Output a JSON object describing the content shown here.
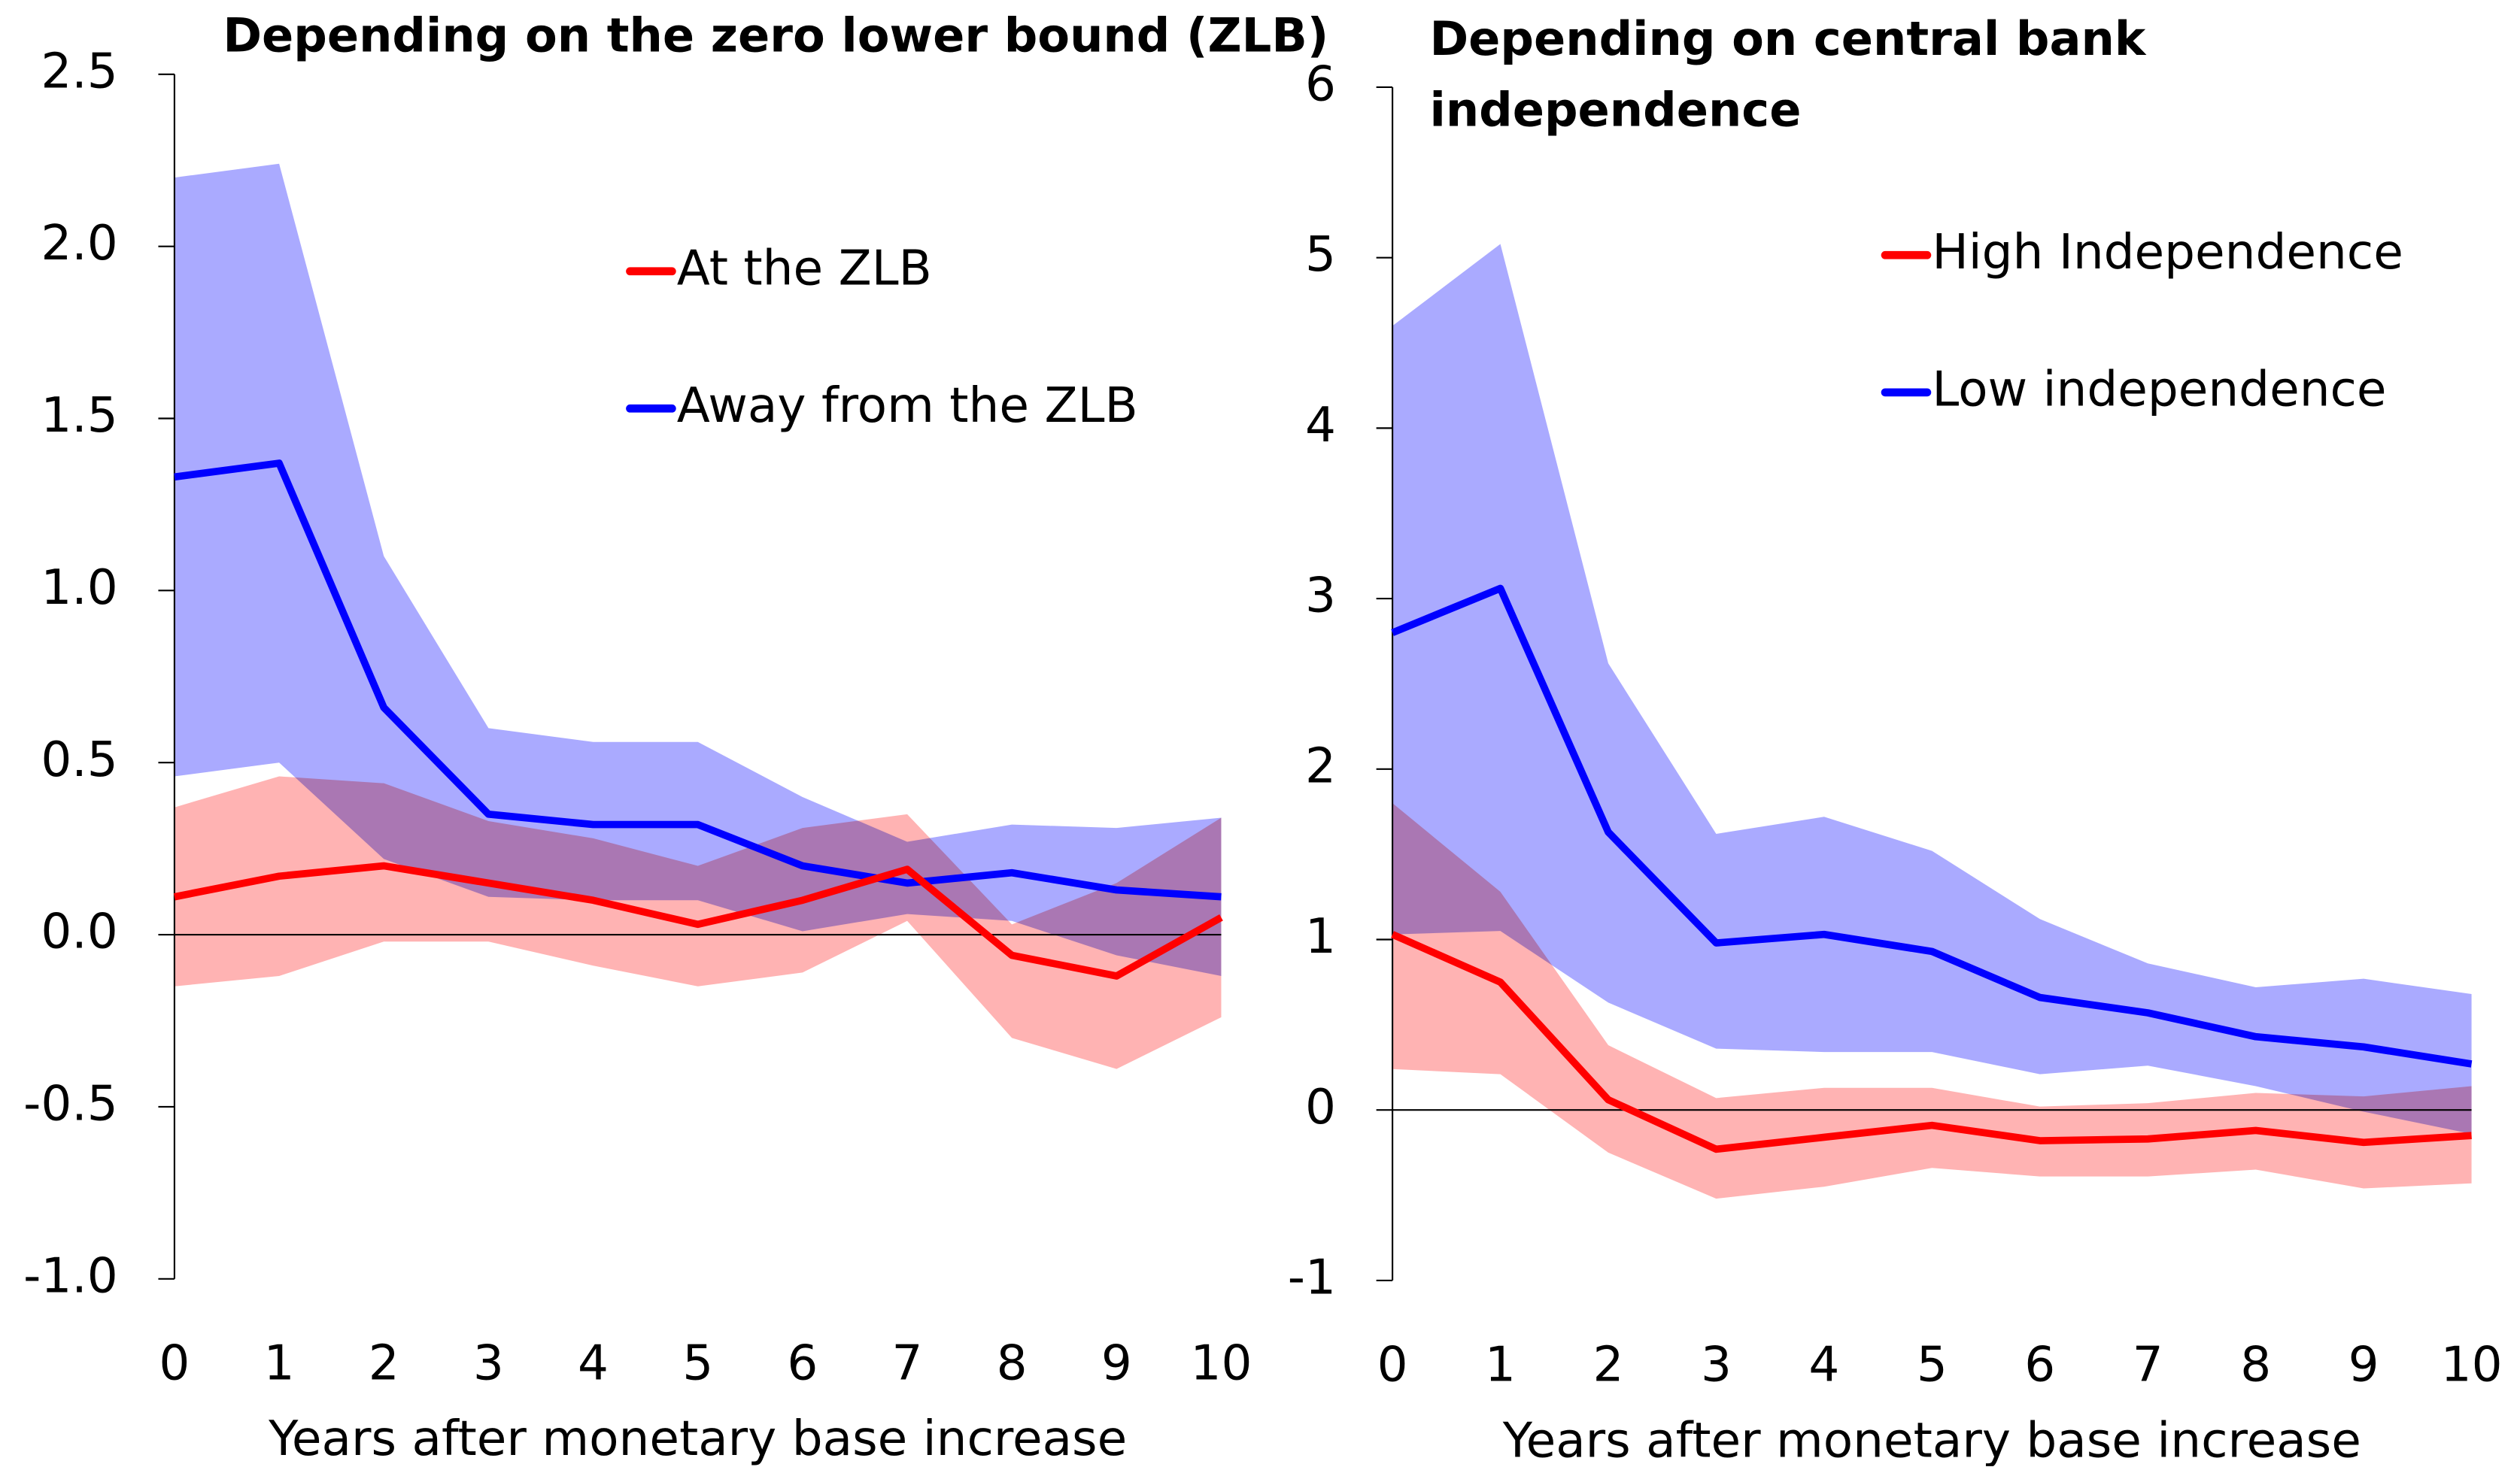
{
  "chart_data": [
    {
      "type": "line",
      "title": "Depending on the zero lower bound (ZLB)",
      "x_label": "Years after monetary base increase",
      "x": [
        0,
        1,
        2,
        3,
        4,
        5,
        6,
        7,
        8,
        9,
        10
      ],
      "xlim": [
        0,
        10
      ],
      "xticks": [
        0,
        1,
        2,
        3,
        4,
        5,
        6,
        7,
        8,
        9,
        10
      ],
      "ylim": [
        -1,
        2.5
      ],
      "yticks": [
        {
          "value": -1,
          "label": "-1.0"
        },
        -0.5,
        {
          "value": 0,
          "label": "0.0"
        },
        0.5,
        {
          "value": 1,
          "label": "1.0"
        },
        1.5,
        {
          "value": 2,
          "label": "2.0"
        },
        2.5
      ],
      "zero_line": true,
      "legend": "upper right",
      "series": [
        {
          "name": "Away from the ZLB",
          "color": "#0000ff",
          "band_color": "#aaaaff",
          "values": [
            1.33,
            1.37,
            0.66,
            0.35,
            0.32,
            0.32,
            0.2,
            0.15,
            0.18,
            0.13,
            0.11
          ],
          "upper": [
            2.2,
            2.24,
            1.1,
            0.6,
            0.56,
            0.56,
            0.4,
            0.27,
            0.32,
            0.31,
            0.34
          ],
          "lower": [
            0.46,
            0.5,
            0.22,
            0.11,
            0.1,
            0.1,
            0.01,
            0.06,
            0.04,
            -0.06,
            -0.12
          ]
        },
        {
          "name": "At the ZLB",
          "color": "#ff0000",
          "band_color": "#ffb3b3",
          "values": [
            0.11,
            0.17,
            0.2,
            0.15,
            0.1,
            0.03,
            0.1,
            0.19,
            -0.06,
            -0.12,
            0.05
          ],
          "upper": [
            0.37,
            0.46,
            0.44,
            0.33,
            0.28,
            0.2,
            0.31,
            0.35,
            0.03,
            0.15,
            0.34
          ],
          "lower": [
            -0.15,
            -0.12,
            -0.02,
            -0.02,
            -0.09,
            -0.15,
            -0.11,
            0.04,
            -0.3,
            -0.39,
            -0.24
          ]
        }
      ]
    },
    {
      "type": "line",
      "title": "Depending on central bank independence",
      "x_label": "Years after monetary base increase",
      "x": [
        0,
        1,
        2,
        3,
        4,
        5,
        6,
        7,
        8,
        9,
        10
      ],
      "xlim": [
        0,
        10
      ],
      "xticks": [
        0,
        1,
        2,
        3,
        4,
        5,
        6,
        7,
        8,
        9,
        10
      ],
      "ylim": [
        -1,
        6
      ],
      "yticks": [
        -1,
        0,
        1,
        2,
        3,
        4,
        5,
        6
      ],
      "zero_line": true,
      "legend": "upper right",
      "series": [
        {
          "name": "Low independence",
          "color": "#0000ff",
          "band_color": "#aaaaff",
          "values": [
            2.8,
            3.06,
            1.63,
            0.98,
            1.03,
            0.93,
            0.66,
            0.57,
            0.43,
            0.37,
            0.27
          ],
          "upper": [
            4.6,
            5.08,
            2.62,
            1.62,
            1.72,
            1.52,
            1.12,
            0.86,
            0.72,
            0.77,
            0.68
          ],
          "lower": [
            1.03,
            1.05,
            0.63,
            0.36,
            0.34,
            0.34,
            0.21,
            0.26,
            0.14,
            -0.01,
            -0.14
          ]
        },
        {
          "name": "High Independence",
          "color": "#ff0000",
          "band_color": "#ffb3b3",
          "values": [
            1.03,
            0.75,
            0.06,
            -0.23,
            -0.16,
            -0.09,
            -0.18,
            -0.17,
            -0.12,
            -0.19,
            -0.15
          ],
          "upper": [
            1.8,
            1.28,
            0.38,
            0.07,
            0.13,
            0.13,
            0.02,
            0.04,
            0.1,
            0.08,
            0.14
          ],
          "lower": [
            0.24,
            0.21,
            -0.25,
            -0.52,
            -0.45,
            -0.34,
            -0.39,
            -0.39,
            -0.35,
            -0.46,
            -0.43
          ]
        }
      ]
    }
  ]
}
